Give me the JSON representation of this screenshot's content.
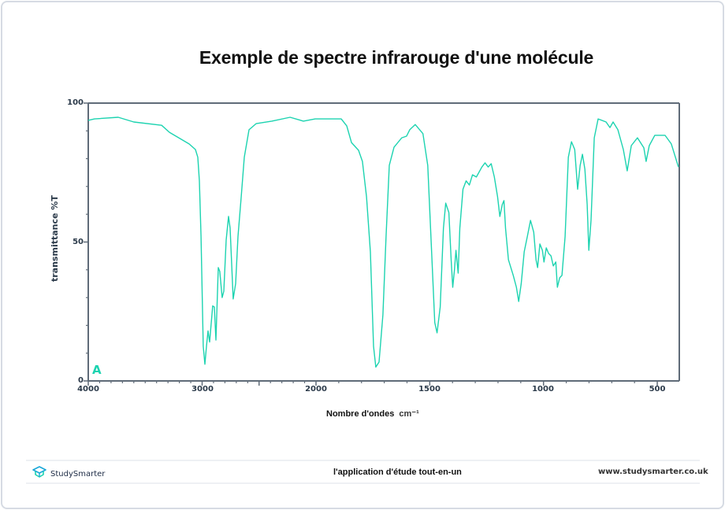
{
  "title": "Exemple de spectre infrarouge d'une molécule",
  "chart": {
    "ylabel": "transmittance %T",
    "xlabel": "Nombre d'ondes",
    "xunit": "cm⁻¹",
    "panel_letter": "A",
    "yticks": [
      "100",
      "50",
      "0"
    ],
    "xticks": [
      "4000",
      "3000",
      "2000",
      "1500",
      "1000",
      "500"
    ],
    "line_color": "#1cd3b0",
    "axis_color": "#5f6b78"
  },
  "footer": {
    "brand": "StudySmarter",
    "tagline": "l'application d'étude tout-en-un",
    "website": "www.studysmarter.co.uk"
  },
  "chart_data": {
    "type": "line",
    "title": "Exemple de spectre infrarouge d'une molécule",
    "xlabel": "Nombre d'ondes cm⁻¹",
    "ylabel": "transmittance %T",
    "xlim": [
      4000,
      400
    ],
    "ylim": [
      0,
      100
    ],
    "x_scale_note": "axis scale doubles below 2000 cm⁻¹",
    "x_major_ticks": [
      4000,
      3000,
      2500,
      2000,
      1500,
      1000,
      500
    ],
    "x_tick_labels": [
      "4000",
      "3000",
      "2000",
      "1500",
      "1000",
      "500"
    ],
    "y_major_ticks": [
      0,
      50,
      100
    ],
    "y_minor_ticks": [
      10,
      20,
      30,
      40,
      60,
      70,
      80,
      90
    ],
    "grid": false,
    "legend": null,
    "annotations": [
      "A"
    ],
    "series": [
      {
        "name": "transmittance",
        "color": "#1cd3b0",
        "x": [
          4000,
          3945,
          3737,
          3600,
          3356,
          3287,
          3114,
          3059,
          3038,
          3024,
          3010,
          2990,
          2976,
          2962,
          2948,
          2934,
          2907,
          2893,
          2879,
          2858,
          2845,
          2824,
          2810,
          2789,
          2768,
          2754,
          2727,
          2706,
          2685,
          2657,
          2630,
          2588,
          2526,
          2388,
          2228,
          2111,
          2007,
          1889,
          1865,
          1844,
          1813,
          1796,
          1778,
          1761,
          1747,
          1737,
          1723,
          1706,
          1692,
          1678,
          1657,
          1623,
          1602,
          1588,
          1564,
          1530,
          1509,
          1492,
          1478,
          1468,
          1454,
          1440,
          1430,
          1416,
          1406,
          1399,
          1392,
          1385,
          1375,
          1368,
          1354,
          1340,
          1326,
          1312,
          1295,
          1271,
          1257,
          1243,
          1230,
          1216,
          1202,
          1192,
          1181,
          1174,
          1167,
          1154,
          1133,
          1119,
          1109,
          1098,
          1085,
          1071,
          1057,
          1043,
          1033,
          1026,
          1016,
          1005,
          998,
          988,
          978,
          967,
          957,
          946,
          939,
          929,
          919,
          905,
          891,
          877,
          863,
          850,
          839,
          829,
          818,
          808,
          801,
          791,
          777,
          760,
          725,
          708,
          694,
          673,
          649,
          632,
          614,
          587,
          559,
          549,
          535,
          511,
          466,
          438,
          407
        ],
        "y": [
          93.8,
          94.3,
          94.9,
          93.2,
          92.0,
          89.5,
          85.3,
          83.3,
          80.5,
          72.0,
          52.0,
          12.5,
          6.0,
          12.5,
          18.0,
          14.0,
          27.0,
          26.6,
          14.7,
          40.8,
          39.4,
          30.0,
          32.3,
          50.7,
          59.2,
          55.0,
          29.5,
          35.0,
          52.0,
          66.3,
          80.5,
          90.4,
          92.6,
          93.5,
          94.9,
          93.5,
          94.3,
          94.3,
          91.8,
          85.8,
          83.0,
          79.0,
          66.3,
          46.5,
          12.5,
          5.0,
          6.8,
          23.8,
          52.0,
          77.6,
          84.1,
          87.5,
          88.1,
          90.4,
          92.3,
          89.0,
          77.6,
          46.5,
          21.0,
          17.3,
          26.6,
          55.0,
          64.0,
          60.6,
          43.6,
          33.7,
          39.4,
          47.0,
          38.8,
          55.0,
          69.0,
          72.0,
          70.5,
          74.2,
          73.4,
          77.0,
          78.5,
          77.0,
          78.2,
          73.4,
          66.3,
          59.2,
          63.5,
          64.9,
          55.0,
          43.6,
          38.0,
          33.7,
          28.6,
          35.0,
          46.5,
          52.0,
          57.8,
          53.5,
          43.6,
          40.8,
          49.3,
          47.0,
          42.8,
          47.9,
          45.9,
          45.0,
          41.4,
          42.8,
          33.7,
          37.1,
          38.0,
          52.0,
          80.5,
          86.1,
          83.3,
          69.0,
          77.6,
          81.6,
          76.2,
          63.5,
          47.0,
          57.8,
          87.5,
          94.3,
          93.2,
          91.2,
          93.2,
          90.4,
          83.3,
          75.6,
          84.7,
          87.5,
          83.9,
          79.0,
          84.7,
          88.4,
          88.4,
          85.3,
          77.0
        ]
      }
    ]
  }
}
